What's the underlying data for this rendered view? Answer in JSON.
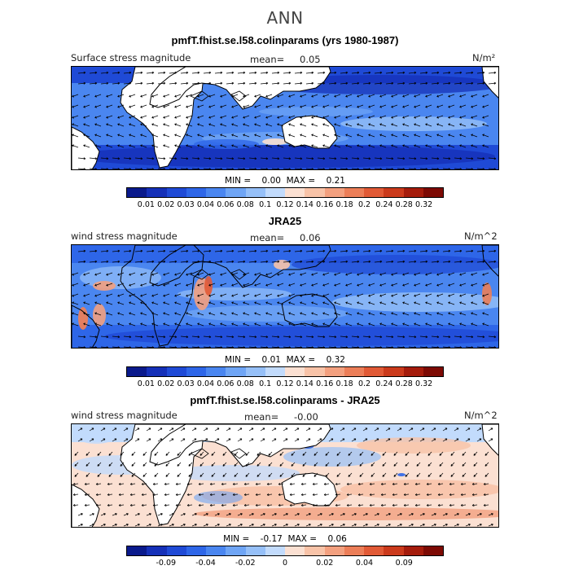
{
  "page": {
    "title": "ANN"
  },
  "colors": {
    "land": "#ffffff",
    "coast": "#000000",
    "arrow": "#000000"
  },
  "chart_data": [
    {
      "type": "heatmap",
      "title": "pmfT.fhist.se.l58.colinparams (yrs 1980-1987)",
      "left_label": "Surface stress magnitude",
      "mean_label": "mean=",
      "mean_value": "0.05",
      "units": "N/m²",
      "min_label": "MIN =",
      "min_value": "0.00",
      "max_label": "MAX =",
      "max_value": "0.21",
      "colorbar": {
        "colors": [
          "#0a1a8c",
          "#1530b8",
          "#1f4ad6",
          "#2e66e8",
          "#4a86f0",
          "#6fa5f5",
          "#96c0f8",
          "#c2dbfc",
          "#fbe0d2",
          "#f8c3a8",
          "#f3a07f",
          "#ec7e58",
          "#e15a36",
          "#cb3a1c",
          "#a51c0c",
          "#7d0a04"
        ],
        "tick_labels": [
          "0.01",
          "0.02",
          "0.03",
          "0.04",
          "0.06",
          "0.08",
          "0.1",
          "0.12",
          "0.14",
          "0.16",
          "0.18",
          "0.2",
          "0.24",
          "0.28",
          "0.32"
        ]
      }
    },
    {
      "type": "heatmap",
      "title": "JRA25",
      "left_label": "wind stress magnitude",
      "mean_label": "mean=",
      "mean_value": "0.06",
      "units": "N/m^2",
      "min_label": "MIN =",
      "min_value": "0.01",
      "max_label": "MAX =",
      "max_value": "0.32",
      "colorbar": {
        "colors": [
          "#0a1a8c",
          "#1530b8",
          "#1f4ad6",
          "#2e66e8",
          "#4a86f0",
          "#6fa5f5",
          "#96c0f8",
          "#c2dbfc",
          "#fbe0d2",
          "#f8c3a8",
          "#f3a07f",
          "#ec7e58",
          "#e15a36",
          "#cb3a1c",
          "#a51c0c",
          "#7d0a04"
        ],
        "tick_labels": [
          "0.01",
          "0.02",
          "0.03",
          "0.04",
          "0.06",
          "0.08",
          "0.1",
          "0.12",
          "0.14",
          "0.16",
          "0.18",
          "0.2",
          "0.24",
          "0.28",
          "0.32"
        ]
      }
    },
    {
      "type": "heatmap",
      "title": "pmfT.fhist.se.l58.colinparams - JRA25",
      "left_label": "wind stress magnitude",
      "mean_label": "mean=",
      "mean_value": "-0.00",
      "units": "N/m^2",
      "min_label": "MIN =",
      "min_value": "-0.17",
      "max_label": "MAX =",
      "max_value": "0.06",
      "colorbar": {
        "colors": [
          "#0a1a8c",
          "#1530b8",
          "#1f4ad6",
          "#2e66e8",
          "#4a86f0",
          "#6fa5f5",
          "#96c0f8",
          "#c2dbfc",
          "#fbe0d2",
          "#f8c3a8",
          "#f3a07f",
          "#ec7e58",
          "#e15a36",
          "#cb3a1c",
          "#a51c0c",
          "#7d0a04"
        ],
        "tick_labels": [
          "-0.09",
          "-0.04",
          "-0.02",
          "0",
          "0.02",
          "0.04",
          "0.09"
        ]
      }
    }
  ]
}
